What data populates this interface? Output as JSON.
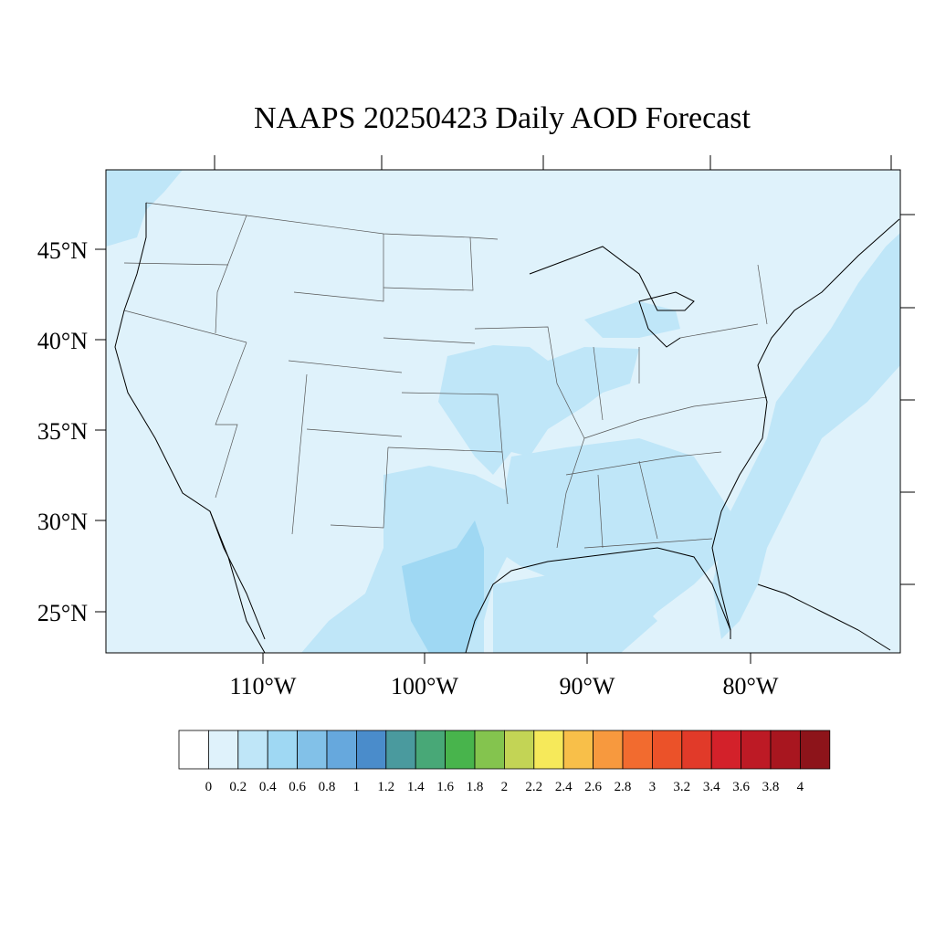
{
  "title": "NAAPS 20250423 Daily AOD Forecast",
  "lat_labels": [
    "45°N",
    "40°N",
    "35°N",
    "30°N",
    "25°N"
  ],
  "lon_labels": [
    "110°W",
    "100°W",
    "90°W",
    "80°W"
  ],
  "colorbar": {
    "labels": [
      "0",
      "0.2",
      "0.4",
      "0.6",
      "0.8",
      "1",
      "1.2",
      "1.4",
      "1.6",
      "1.8",
      "2",
      "2.2",
      "2.4",
      "2.6",
      "2.8",
      "3",
      "3.2",
      "3.4",
      "3.6",
      "3.8",
      "4"
    ],
    "colors": [
      "#ffffff",
      "#dff2fb",
      "#bfe6f8",
      "#9fd8f3",
      "#82c1e8",
      "#66a8dd",
      "#4a8ccb",
      "#4a9a9e",
      "#48a877",
      "#48b44c",
      "#84c44e",
      "#c3d455",
      "#f6e95a",
      "#f8bf49",
      "#f7993e",
      "#f26b2f",
      "#eb5229",
      "#e13a29",
      "#d3212a",
      "#bd1a25",
      "#a8161f",
      "#8d141a"
    ]
  },
  "colors": {
    "background_aod": "#dff2fb",
    "aod_0_4": "#bfe6f8",
    "aod_0_6": "#9fd8f3",
    "coastline": "#000000",
    "state_border": "#555555"
  }
}
